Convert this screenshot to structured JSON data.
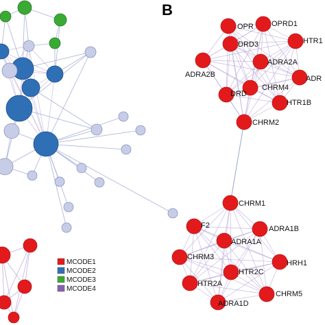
{
  "panel_b": {
    "label": "B"
  },
  "colors": {
    "mcode1": "#e31a1c",
    "mcode2": "#2f6fb5",
    "mcode3": "#3aaa35",
    "mcode4": "#8a5fb0",
    "peripheral": "#c7cde6",
    "edge_intra": "#b6a3d6",
    "edge_inter": "#9aa4d0"
  },
  "legend": [
    {
      "label": "MCODE1",
      "color_key": "mcode1"
    },
    {
      "label": "MCODE2",
      "color_key": "mcode2"
    },
    {
      "label": "MCODE3",
      "color_key": "mcode3"
    },
    {
      "label": "MCODE4",
      "color_key": "mcode4"
    }
  ],
  "cluster_top": {
    "nodes": [
      "OPRK1",
      "OPRD1",
      "DRD3",
      "HTR1",
      "ADRA2A",
      "ADR",
      "ADRA2B",
      "CHRM4",
      "DRD2",
      "HTR1B",
      "CHRM2"
    ],
    "visible_text": [
      "OPR",
      "OPRD1",
      "DRD3",
      "HTR1",
      "ADRA2A",
      "ADR",
      "ADRA2B",
      "CHRM4",
      "DRD",
      "HTR1B",
      "CHRM2"
    ]
  },
  "cluster_bottom": {
    "visible_text": [
      "CHRM1",
      "F2",
      "ADRA1B",
      "ADRA1A",
      "CHRM3",
      "HRH1",
      "HTR2C",
      "HTR2A",
      "CHRM5",
      "ADRA1D"
    ]
  }
}
